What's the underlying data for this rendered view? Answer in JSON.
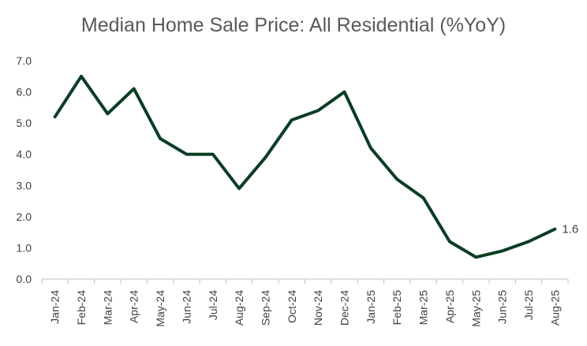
{
  "chart_data": {
    "type": "line",
    "title": "Median Home Sale Price: All Residential (%YoY)",
    "xlabel": "",
    "ylabel": "",
    "ylim": [
      0,
      7
    ],
    "yticks": [
      "0.0",
      "1.0",
      "2.0",
      "3.0",
      "4.0",
      "5.0",
      "6.0",
      "7.0"
    ],
    "grid": false,
    "legend": "none",
    "categories": [
      "Jan-24",
      "Feb-24",
      "Mar-24",
      "Apr-24",
      "May-24",
      "Jun-24",
      "Jul-24",
      "Aug-24",
      "Sep-24",
      "Oct-24",
      "Nov-24",
      "Dec-24",
      "Jan-25",
      "Feb-25",
      "Mar-25",
      "Apr-25",
      "May-25",
      "Jun-25",
      "Jul-25",
      "Aug-25"
    ],
    "series": [
      {
        "color": "#0b3d22",
        "values": [
          5.2,
          6.5,
          5.3,
          6.1,
          4.5,
          4.0,
          4.0,
          2.9,
          3.9,
          5.1,
          5.4,
          6.0,
          4.2,
          3.2,
          2.6,
          1.2,
          0.7,
          0.9,
          1.2,
          1.6
        ]
      }
    ],
    "data_labels": [
      {
        "index": 19,
        "text": "1.6"
      }
    ]
  }
}
